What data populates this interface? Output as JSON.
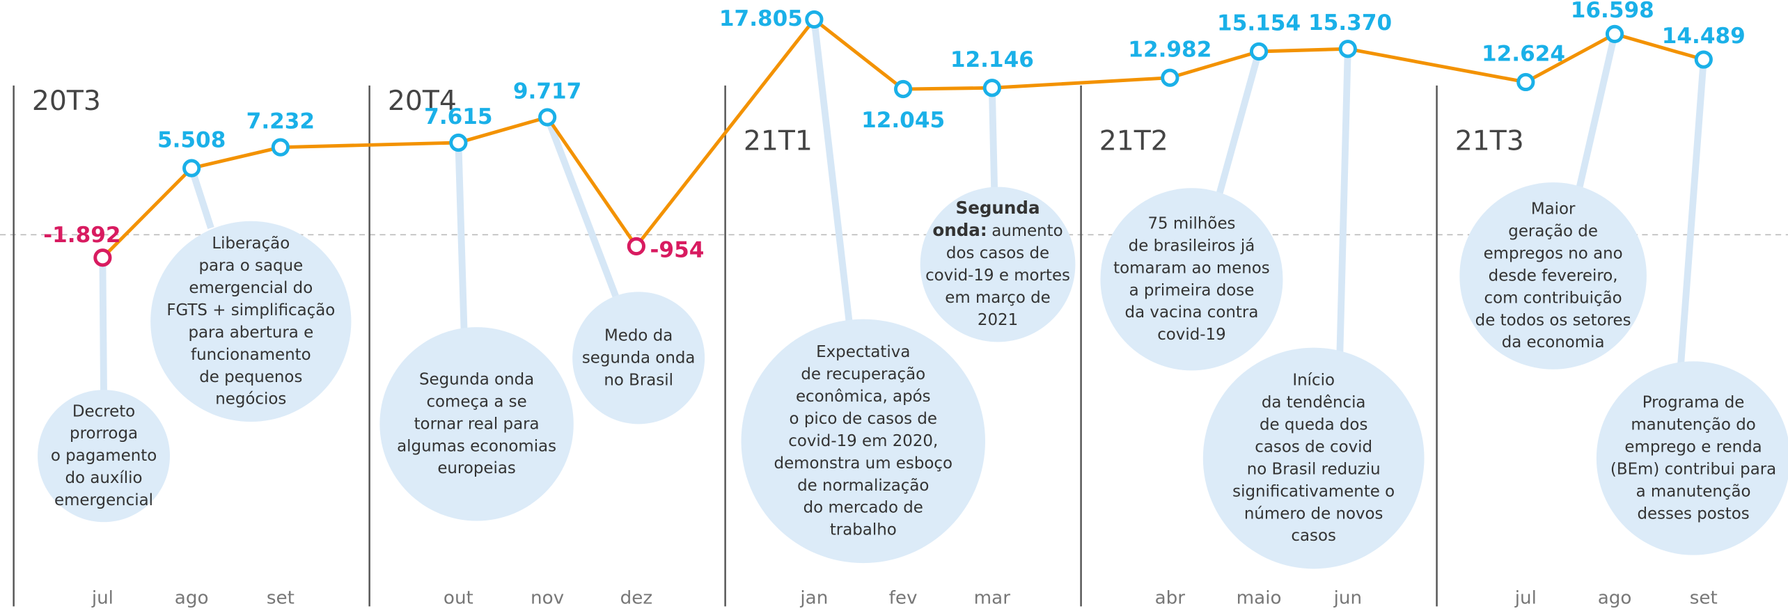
{
  "chart_data": {
    "type": "line",
    "categories": [
      "jul",
      "ago",
      "set",
      "out",
      "nov",
      "dez",
      "jan",
      "fev",
      "mar",
      "abr",
      "maio",
      "jun",
      "jul",
      "ago",
      "set"
    ],
    "quarters": [
      "20T3",
      "20T4",
      "21T1",
      "21T2",
      "21T3"
    ],
    "series": [
      {
        "color": "#f39200",
        "marker_color": "#1ab0e8",
        "negative_color": "#d81b60",
        "values": [
          -1892,
          5508,
          7232,
          7615,
          9717,
          -954,
          17805,
          12045,
          12146,
          12982,
          15154,
          15370,
          12624,
          16598,
          14489
        ],
        "value_labels": [
          "-1.892",
          "5.508",
          "7.232",
          "7.615",
          "9.717",
          "-954",
          "17.805",
          "12.045",
          "12.146",
          "12.982",
          "15.154",
          "15.370",
          "12.624",
          "16.598",
          "14.489"
        ]
      }
    ],
    "annotations": [
      {
        "lines": [
          "Decreto",
          "prorroga",
          "o pagamento",
          "do auxílio",
          "emergencial"
        ]
      },
      {
        "lines": [
          "Liberação",
          "para o saque",
          "emergencial do",
          "FGTS + simplificação",
          "para abertura e",
          "funcionamento",
          "de pequenos",
          "negócios"
        ]
      },
      {
        "lines": [
          "Segunda onda",
          "começa a se",
          "tornar real para",
          "algumas economias",
          "europeias"
        ]
      },
      {
        "lines": [
          "Medo da",
          "segunda onda",
          "no Brasil"
        ]
      },
      {
        "lines": [
          "Expectativa",
          "de recuperação",
          "econômica, após",
          "o pico de casos de",
          "covid-19 em 2020,",
          "demonstra um esboço",
          "de normalização",
          "do mercado de",
          "trabalho"
        ]
      },
      {
        "lines": [
          {
            "bold": "Segunda"
          },
          {
            "bold": "onda:",
            "text": "aumento"
          },
          "dos casos de",
          "covid-19 e mortes",
          "em março de",
          "2021"
        ]
      },
      {
        "lines": [
          "75 milhões",
          "de brasileiros já",
          "tomaram ao menos",
          "a primeira dose",
          "da vacina contra",
          "covid-19"
        ]
      },
      {
        "lines": [
          "Início",
          "da tendência",
          "de queda dos",
          "casos de covid",
          "no Brasil reduziu",
          "significativamente o",
          "número de novos",
          "casos"
        ]
      },
      {
        "lines": [
          "Maior",
          "geração de",
          "empregos no ano",
          "desde fevereiro,",
          "com contribuição",
          "de todos os setores",
          "da economia"
        ]
      },
      {
        "lines": [
          "Programa de",
          "manutenção do",
          "emprego e renda",
          "(BEm) contribui para",
          "a manutenção",
          "desses postos"
        ]
      }
    ]
  }
}
